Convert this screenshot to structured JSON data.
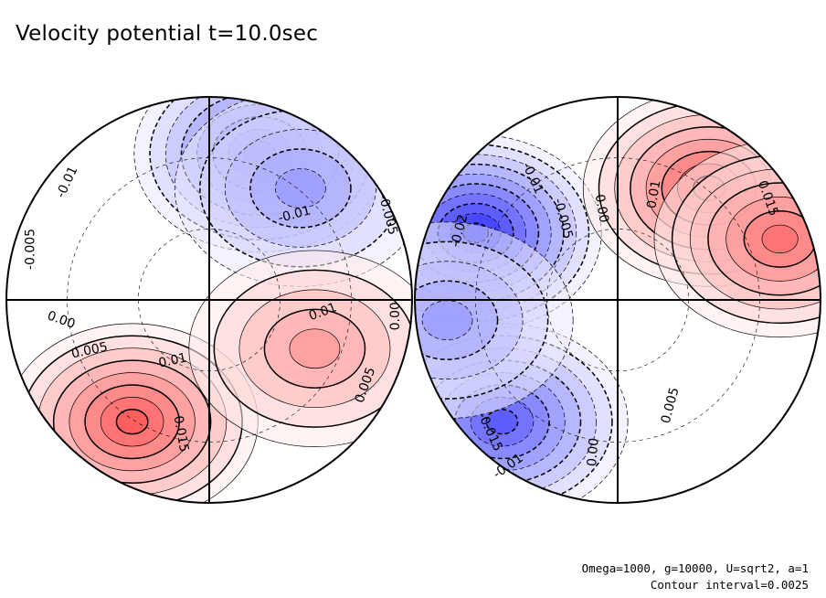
{
  "title": "Velocity potential t=10.0sec",
  "footer": {
    "params": "Omega=1000, g=10000, U=sqrt2, a=1",
    "contour_interval": "Contour interval=0.0025"
  },
  "colors": {
    "positive": "#ff2020",
    "negative": "#2020ff",
    "background": "#ffffff",
    "line": "#000000"
  },
  "chart_data": [
    {
      "type": "contour-map",
      "projection": "orthographic, two hemispheres",
      "title": "Velocity potential t=10.0sec",
      "variable": "velocity potential",
      "time": "10.0sec",
      "contour_interval": 0.0025,
      "hemispheres": [
        {
          "name": "left hemisphere",
          "blobs": [
            {
              "sign": "negative",
              "quadrant": "upper-right",
              "value": -0.02,
              "cx": 0.25,
              "cy": 0.72
            },
            {
              "sign": "negative",
              "quadrant": "upper-right",
              "value": -0.014,
              "cx": 0.45,
              "cy": 0.55
            },
            {
              "sign": "positive",
              "quadrant": "lower-left",
              "value": 0.02,
              "cx": -0.38,
              "cy": -0.6
            },
            {
              "sign": "positive",
              "quadrant": "lower-right",
              "value": 0.014,
              "cx": 0.52,
              "cy": -0.24
            }
          ],
          "labels": [
            {
              "text": "-0.01",
              "x": -0.7,
              "y": 0.58,
              "angle": -65
            },
            {
              "text": "-0.005",
              "x": -0.88,
              "y": 0.25,
              "angle": -90
            },
            {
              "text": "-0.01",
              "x": 0.42,
              "y": 0.42,
              "angle": -15
            },
            {
              "text": "-0.005",
              "x": 0.88,
              "y": 0.42,
              "angle": 75
            },
            {
              "text": "0.00",
              "x": -0.73,
              "y": -0.1,
              "angle": 20
            },
            {
              "text": "0.005",
              "x": -0.59,
              "y": -0.25,
              "angle": -12
            },
            {
              "text": "0.01",
              "x": -0.18,
              "y": -0.3,
              "angle": -12
            },
            {
              "text": "0.00",
              "x": 0.92,
              "y": -0.08,
              "angle": -90
            },
            {
              "text": "0.01",
              "x": 0.56,
              "y": -0.06,
              "angle": -20
            },
            {
              "text": "0.005",
              "x": 0.77,
              "y": -0.42,
              "angle": -70
            },
            {
              "text": "0.015",
              "x": -0.14,
              "y": -0.66,
              "angle": 80
            }
          ]
        },
        {
          "name": "right hemisphere",
          "blobs": [
            {
              "sign": "negative",
              "quadrant": "left",
              "value": -0.026,
              "cx": -0.7,
              "cy": 0.33
            },
            {
              "sign": "negative",
              "quadrant": "lower-left",
              "value": -0.02,
              "cx": -0.57,
              "cy": -0.6
            },
            {
              "sign": "negative",
              "quadrant": "left",
              "value": -0.014,
              "cx": -0.84,
              "cy": -0.1
            },
            {
              "sign": "positive",
              "quadrant": "upper-right",
              "value": 0.022,
              "cx": 0.45,
              "cy": 0.55
            },
            {
              "sign": "positive",
              "quadrant": "upper-right",
              "value": 0.018,
              "cx": 0.8,
              "cy": 0.3
            }
          ],
          "labels": [
            {
              "text": "-0.02",
              "x": -0.78,
              "y": 0.34,
              "angle": -75
            },
            {
              "text": "-0.01",
              "x": -0.42,
              "y": 0.6,
              "angle": 65
            },
            {
              "text": "-0.005",
              "x": -0.27,
              "y": 0.4,
              "angle": 75
            },
            {
              "text": "0.00",
              "x": -0.08,
              "y": 0.45,
              "angle": 80
            },
            {
              "text": "0.01",
              "x": 0.18,
              "y": 0.52,
              "angle": -80
            },
            {
              "text": "0.015",
              "x": 0.74,
              "y": 0.5,
              "angle": 70
            },
            {
              "text": "-0.015",
              "x": -0.63,
              "y": -0.65,
              "angle": 65
            },
            {
              "text": "-0.01",
              "x": -0.54,
              "y": -0.82,
              "angle": -35
            },
            {
              "text": "0.00",
              "x": -0.12,
              "y": -0.75,
              "angle": -85
            },
            {
              "text": "0.005",
              "x": 0.26,
              "y": -0.52,
              "angle": -75
            }
          ]
        }
      ]
    }
  ]
}
